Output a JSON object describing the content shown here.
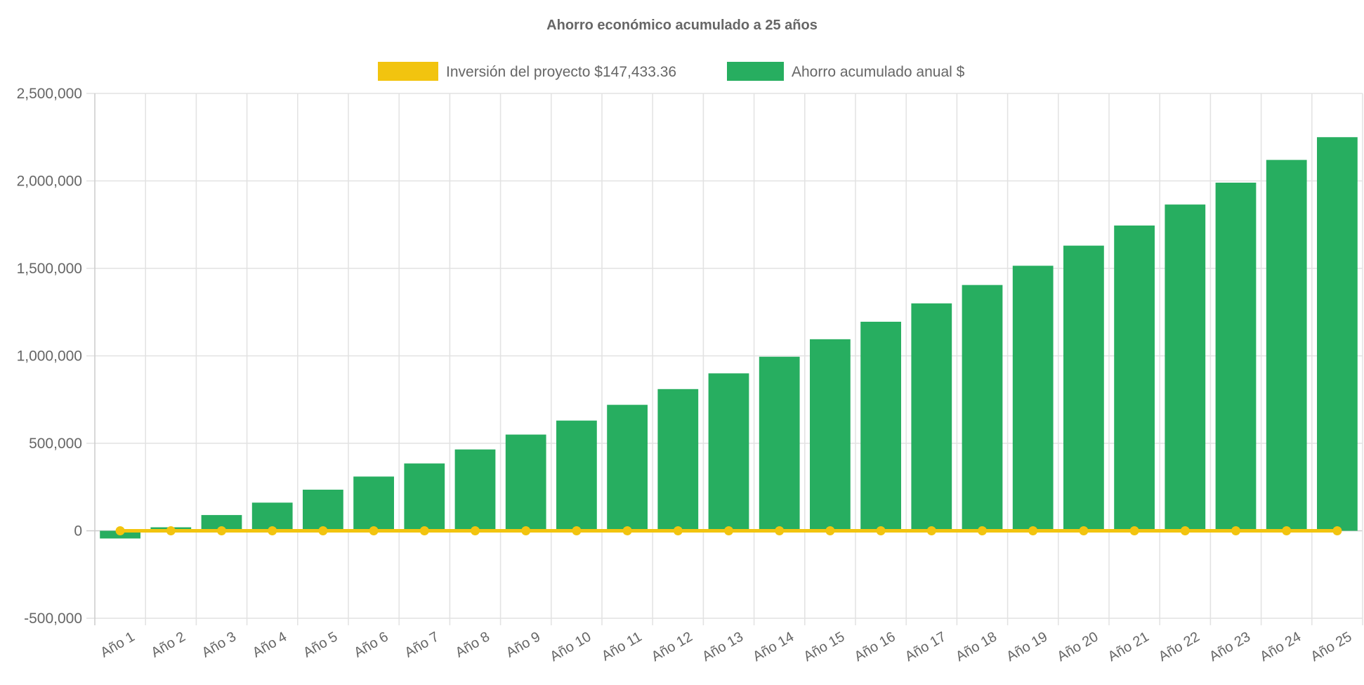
{
  "chart_data": {
    "type": "bar",
    "title": "Ahorro económico acumulado a 25 años",
    "categories": [
      "Año 1",
      "Año 2",
      "Año 3",
      "Año 4",
      "Año 5",
      "Año 6",
      "Año 7",
      "Año 8",
      "Año 9",
      "Año 10",
      "Año 11",
      "Año 12",
      "Año 13",
      "Año 14",
      "Año 15",
      "Año 16",
      "Año 17",
      "Año 18",
      "Año 19",
      "Año 20",
      "Año 21",
      "Año 22",
      "Año 23",
      "Año 24",
      "Año 25"
    ],
    "series": [
      {
        "name": "Inversión del proyecto $147,433.36",
        "type": "line",
        "color": "#f2c40f",
        "values": [
          0,
          0,
          0,
          0,
          0,
          0,
          0,
          0,
          0,
          0,
          0,
          0,
          0,
          0,
          0,
          0,
          0,
          0,
          0,
          0,
          0,
          0,
          0,
          0,
          0
        ]
      },
      {
        "name": "Ahorro acumulado anual $",
        "type": "bar",
        "color": "#27ae60",
        "values": [
          -44000,
          20000,
          90000,
          161000,
          235000,
          310000,
          385000,
          465000,
          550000,
          630000,
          720000,
          810000,
          900000,
          995000,
          1095000,
          1195000,
          1300000,
          1405000,
          1515000,
          1630000,
          1745000,
          1865000,
          1990000,
          2120000,
          2250000
        ]
      }
    ],
    "ylim": [
      -500000,
      2500000
    ],
    "yticks": [
      "-500,000",
      "0",
      "500,000",
      "1,000,000",
      "1,500,000",
      "2,000,000",
      "2,500,000"
    ],
    "ytick_values": [
      -500000,
      0,
      500000,
      1000000,
      1500000,
      2000000,
      2500000
    ],
    "grid": true,
    "legend": "top"
  }
}
